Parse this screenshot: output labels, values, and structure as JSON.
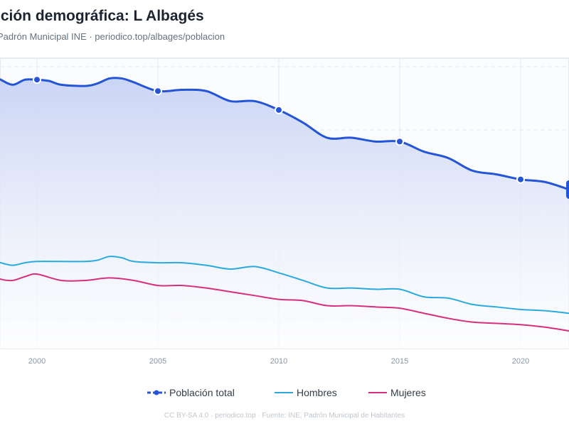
{
  "title": "ución demográfica: L Albagés",
  "subtitle": "Padrón Municipal INE · periodico.top/albages/poblacion",
  "footer": "CC BY-SA 4.0 · periodico.top · Fuente: INE, Padrón Municipal de Habitantes",
  "colors": {
    "total": "#2455d6",
    "hombres": "#29a9df",
    "mujeres": "#d4307e",
    "area_top": "#c9d4f4",
    "grid": "#e4e9f0",
    "plot_border": "#d3dae4"
  },
  "legend": {
    "total": "Población total",
    "hombres": "Hombres",
    "mujeres": "Mujeres"
  },
  "chart_data": {
    "type": "line",
    "title": "ución demográfica: L Albagés",
    "x_ticks": [
      2000,
      2005,
      2010,
      2015,
      2020
    ],
    "xlim": [
      1998.5,
      2022
    ],
    "ylim": [
      3,
      26
    ],
    "grid": true,
    "legend_position": "bottom",
    "series": [
      {
        "key": "total",
        "name": "Población total",
        "style": "line-with-area-and-markers",
        "markers_at": [
          2000,
          2005,
          2010,
          2015,
          2020
        ],
        "points": [
          [
            1998.0,
            24.8
          ],
          [
            1998.5,
            24.3
          ],
          [
            1999.0,
            23.9
          ],
          [
            1999.5,
            24.3
          ],
          [
            2000.0,
            24.3
          ],
          [
            2000.5,
            24.2
          ],
          [
            2001.0,
            23.9
          ],
          [
            2002.0,
            23.8
          ],
          [
            2002.5,
            24.0
          ],
          [
            2003.0,
            24.4
          ],
          [
            2003.5,
            24.4
          ],
          [
            2004.0,
            24.1
          ],
          [
            2005.0,
            23.4
          ],
          [
            2006.0,
            23.5
          ],
          [
            2007.0,
            23.4
          ],
          [
            2008.0,
            22.6
          ],
          [
            2009.0,
            22.6
          ],
          [
            2010.0,
            21.9
          ],
          [
            2011.0,
            20.9
          ],
          [
            2012.0,
            19.7
          ],
          [
            2013.0,
            19.7
          ],
          [
            2014.0,
            19.4
          ],
          [
            2015.0,
            19.4
          ],
          [
            2016.0,
            18.6
          ],
          [
            2017.0,
            18.1
          ],
          [
            2018.0,
            17.1
          ],
          [
            2019.0,
            16.8
          ],
          [
            2020.0,
            16.4
          ],
          [
            2021.0,
            16.2
          ],
          [
            2022.0,
            15.6
          ]
        ]
      },
      {
        "key": "hombres",
        "name": "Hombres",
        "style": "line",
        "points": [
          [
            1998.0,
            10.1
          ],
          [
            1998.5,
            9.8
          ],
          [
            1999.0,
            9.6
          ],
          [
            1999.5,
            9.8
          ],
          [
            2000.0,
            9.9
          ],
          [
            2001.0,
            9.9
          ],
          [
            2002.0,
            9.9
          ],
          [
            2002.5,
            10.0
          ],
          [
            2003.0,
            10.3
          ],
          [
            2003.5,
            10.2
          ],
          [
            2004.0,
            9.9
          ],
          [
            2005.0,
            9.8
          ],
          [
            2006.0,
            9.8
          ],
          [
            2007.0,
            9.6
          ],
          [
            2008.0,
            9.3
          ],
          [
            2009.0,
            9.5
          ],
          [
            2010.0,
            9.0
          ],
          [
            2011.0,
            8.4
          ],
          [
            2012.0,
            7.8
          ],
          [
            2013.0,
            7.8
          ],
          [
            2014.0,
            7.7
          ],
          [
            2015.0,
            7.7
          ],
          [
            2016.0,
            7.1
          ],
          [
            2017.0,
            7.0
          ],
          [
            2018.0,
            6.5
          ],
          [
            2019.0,
            6.3
          ],
          [
            2020.0,
            6.1
          ],
          [
            2021.0,
            6.0
          ],
          [
            2022.0,
            5.8
          ]
        ]
      },
      {
        "key": "mujeres",
        "name": "Mujeres",
        "style": "line",
        "points": [
          [
            1998.0,
            8.9
          ],
          [
            1998.5,
            8.5
          ],
          [
            1999.0,
            8.4
          ],
          [
            1999.5,
            8.7
          ],
          [
            2000.0,
            8.9
          ],
          [
            2001.0,
            8.4
          ],
          [
            2002.0,
            8.4
          ],
          [
            2003.0,
            8.6
          ],
          [
            2004.0,
            8.4
          ],
          [
            2005.0,
            8.0
          ],
          [
            2006.0,
            8.0
          ],
          [
            2007.0,
            7.8
          ],
          [
            2008.0,
            7.5
          ],
          [
            2009.0,
            7.2
          ],
          [
            2010.0,
            6.9
          ],
          [
            2011.0,
            6.8
          ],
          [
            2012.0,
            6.4
          ],
          [
            2013.0,
            6.4
          ],
          [
            2014.0,
            6.3
          ],
          [
            2015.0,
            6.2
          ],
          [
            2016.0,
            5.8
          ],
          [
            2017.0,
            5.4
          ],
          [
            2018.0,
            5.1
          ],
          [
            2019.0,
            5.0
          ],
          [
            2020.0,
            4.9
          ],
          [
            2021.0,
            4.7
          ],
          [
            2022.0,
            4.4
          ]
        ]
      }
    ]
  }
}
